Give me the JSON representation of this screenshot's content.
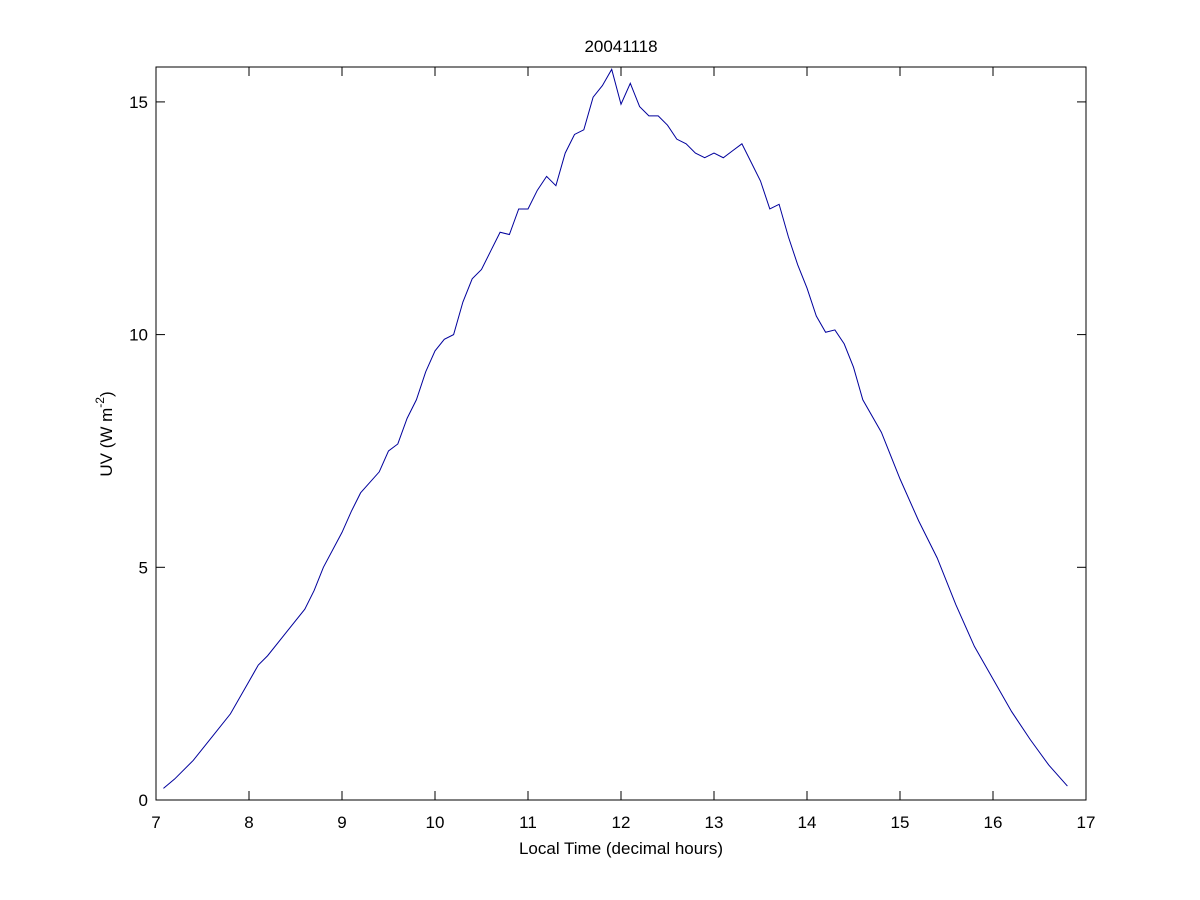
{
  "chart_data": {
    "type": "line",
    "title": "20041118",
    "xlabel": "Local Time (decimal hours)",
    "ylabel_parts": [
      "UV (W m",
      "-2",
      ")"
    ],
    "xlim": [
      7,
      17
    ],
    "xticks": [
      7,
      8,
      9,
      10,
      11,
      12,
      13,
      14,
      15,
      16,
      17
    ],
    "ylim": [
      0,
      15.75
    ],
    "yticks": [
      0,
      5,
      10,
      15
    ],
    "grid": false,
    "series": [
      {
        "color": "#00009c",
        "x": [
          7.08,
          7.2,
          7.4,
          7.6,
          7.8,
          8.0,
          8.1,
          8.2,
          8.4,
          8.6,
          8.7,
          8.8,
          9.0,
          9.1,
          9.2,
          9.4,
          9.5,
          9.6,
          9.7,
          9.8,
          9.9,
          10.0,
          10.1,
          10.2,
          10.3,
          10.4,
          10.5,
          10.6,
          10.7,
          10.8,
          10.9,
          11.0,
          11.1,
          11.2,
          11.3,
          11.4,
          11.5,
          11.6,
          11.7,
          11.8,
          11.9,
          12.0,
          12.1,
          12.2,
          12.3,
          12.4,
          12.5,
          12.6,
          12.7,
          12.8,
          12.9,
          13.0,
          13.1,
          13.2,
          13.3,
          13.4,
          13.5,
          13.6,
          13.7,
          13.8,
          13.9,
          14.0,
          14.1,
          14.2,
          14.3,
          14.4,
          14.5,
          14.6,
          14.8,
          15.0,
          15.2,
          15.4,
          15.6,
          15.8,
          16.0,
          16.2,
          16.4,
          16.6,
          16.8
        ],
        "values": [
          0.25,
          0.45,
          0.85,
          1.35,
          1.85,
          2.55,
          2.9,
          3.1,
          3.6,
          4.1,
          4.5,
          5.0,
          5.75,
          6.2,
          6.6,
          7.05,
          7.5,
          7.65,
          8.2,
          8.6,
          9.2,
          9.65,
          9.9,
          10.0,
          10.7,
          11.2,
          11.4,
          11.8,
          12.2,
          12.15,
          12.7,
          12.7,
          13.1,
          13.4,
          13.2,
          13.9,
          14.3,
          14.4,
          15.1,
          15.35,
          15.7,
          14.95,
          15.4,
          14.9,
          14.7,
          14.7,
          14.5,
          14.2,
          14.1,
          13.9,
          13.8,
          13.9,
          13.8,
          13.95,
          14.1,
          13.7,
          13.3,
          12.7,
          12.8,
          12.1,
          11.5,
          11.0,
          10.4,
          10.05,
          10.1,
          9.8,
          9.3,
          8.6,
          7.9,
          6.9,
          6.0,
          5.2,
          4.2,
          3.3,
          2.6,
          1.9,
          1.3,
          0.75,
          0.3
        ]
      }
    ]
  }
}
